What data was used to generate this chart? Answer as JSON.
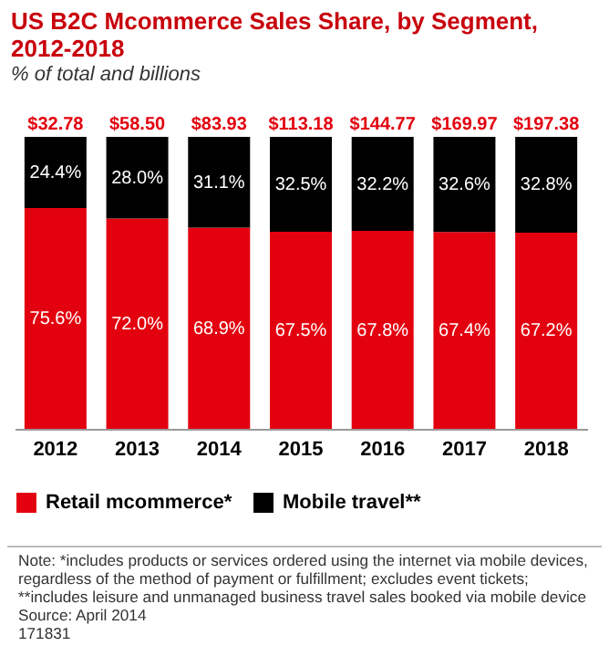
{
  "chart_data": {
    "type": "bar",
    "title": "US B2C Mcommerce Sales Share, by Segment, 2012-2018",
    "subtitle": "% of total and billions",
    "categories": [
      "2012",
      "2013",
      "2014",
      "2015",
      "2016",
      "2017",
      "2018"
    ],
    "stacked": true,
    "ylim": [
      0,
      100
    ],
    "legend": "bottom",
    "series": [
      {
        "name": "Retail mcommerce*",
        "color": "#e3000f",
        "values": [
          75.6,
          72.0,
          68.9,
          67.5,
          67.8,
          67.4,
          67.2
        ],
        "value_labels": [
          "75.6%",
          "72.0%",
          "68.9%",
          "67.5%",
          "67.8%",
          "67.4%",
          "67.2%"
        ]
      },
      {
        "name": "Mobile travel**",
        "color": "#000000",
        "values": [
          24.4,
          28.0,
          31.1,
          32.5,
          32.2,
          32.6,
          32.8
        ],
        "value_labels": [
          "24.4%",
          "28.0%",
          "31.1%",
          "32.5%",
          "32.2%",
          "32.6%",
          "32.8%"
        ]
      }
    ],
    "annotations": [
      {
        "text": "$32.78",
        "x": "2012",
        "y": 100
      },
      {
        "text": "$58.50",
        "x": "2013",
        "y": 100
      },
      {
        "text": "$83.93",
        "x": "2014",
        "y": 100
      },
      {
        "text": "$113.18",
        "x": "2015",
        "y": 100
      },
      {
        "text": "$144.77",
        "x": "2016",
        "y": 100
      },
      {
        "text": "$169.97",
        "x": "2017",
        "y": 100
      },
      {
        "text": "$197.38",
        "x": "2018",
        "y": 100
      },
      "Note: *includes products or services ordered using the internet via mobile devices, regardless of the method of payment or fulfillment; excludes event tickets; **includes leisure and unmanaged business travel sales booked via mobile device",
      "Source: April 2014",
      "171831"
    ]
  }
}
